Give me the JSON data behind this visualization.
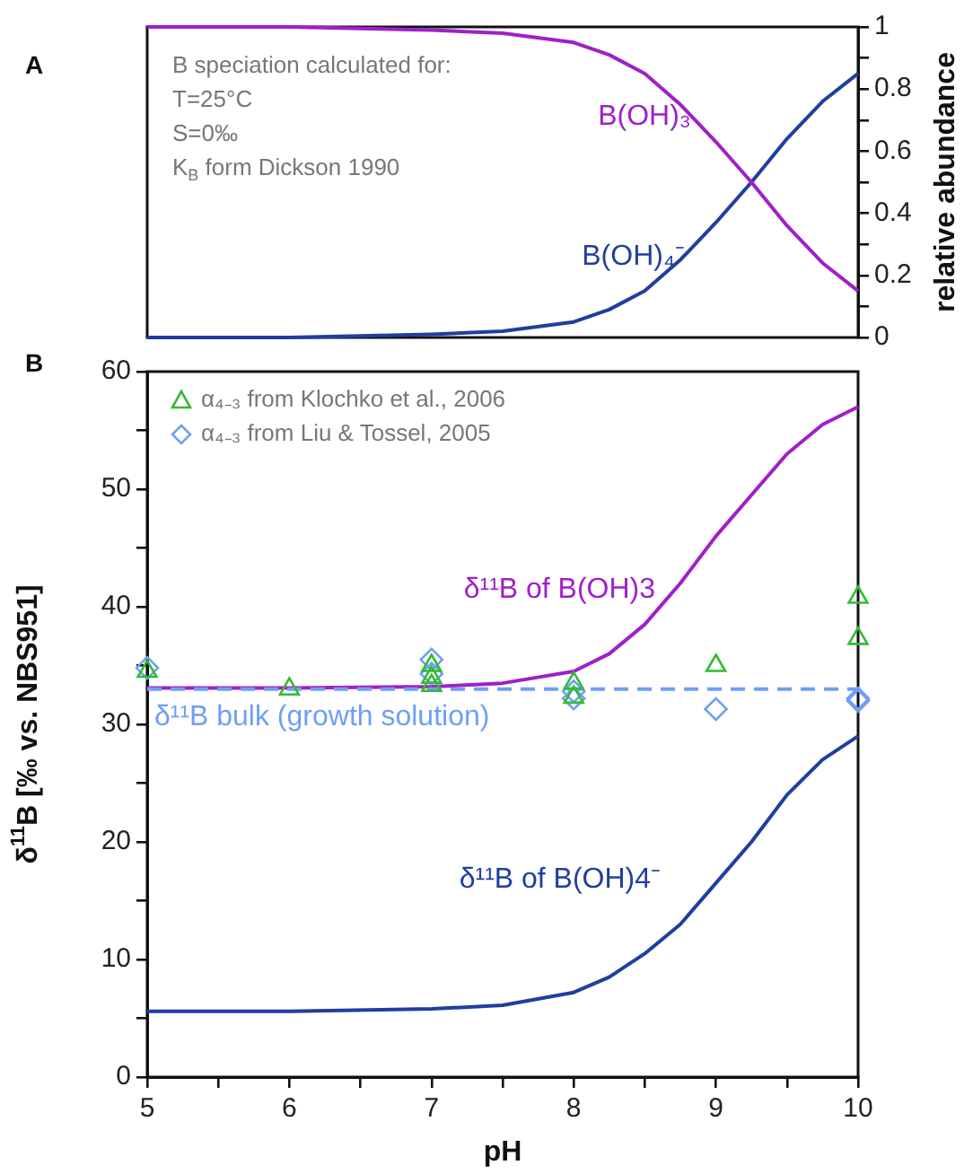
{
  "chart_data": [
    {
      "type": "line",
      "title": "A",
      "ylabel": "relative abundance",
      "xlim": [
        5,
        10
      ],
      "ylim": [
        0,
        1
      ],
      "yticks": [
        0,
        {
          "value": 0.1,
          "label": null
        },
        0.2,
        {
          "value": 0.3,
          "label": null
        },
        0.4,
        {
          "value": 0.5,
          "label": null
        },
        0.6,
        {
          "value": 0.7,
          "label": null
        },
        0.8,
        {
          "value": 0.9,
          "label": null
        },
        1
      ],
      "tick_labels": "y",
      "grid": false,
      "marker": "none",
      "annotations": [
        "B speciation calculated for:",
        "T=25°C",
        "S=0‰",
        "K$_{B}$ form Dickson 1990"
      ],
      "x": [
        5,
        6,
        7,
        7.5,
        8,
        8.25,
        8.5,
        8.75,
        9,
        9.25,
        9.5,
        9.75,
        10
      ],
      "series": [
        {
          "name": "B(OH)₃",
          "color": "#a020c8",
          "values": [
            1,
            1,
            0.99,
            0.98,
            0.95,
            0.91,
            0.85,
            0.75,
            0.63,
            0.5,
            0.36,
            0.24,
            0.15
          ]
        },
        {
          "name": "B(OH)₄⁻",
          "color": "#1f3f9f",
          "values": [
            0,
            0,
            0.01,
            0.02,
            0.05,
            0.09,
            0.15,
            0.25,
            0.37,
            0.5,
            0.64,
            0.76,
            0.85
          ]
        }
      ]
    },
    {
      "type": "line",
      "title": "B",
      "xlabel": "pH",
      "ylabel": "δ$^{11}$B [‰ vs. NBS951]",
      "xlim": [
        5,
        10
      ],
      "ylim": [
        0,
        60
      ],
      "xticks": [
        5,
        {
          "value": 5.5,
          "label": null
        },
        6,
        {
          "value": 6.5,
          "label": null
        },
        7,
        {
          "value": 7.5,
          "label": null
        },
        8,
        {
          "value": 8.5,
          "label": null
        },
        9,
        {
          "value": 9.5,
          "label": null
        },
        10
      ],
      "yticks": [
        0,
        {
          "value": 5,
          "label": null
        },
        10,
        {
          "value": 15,
          "label": null
        },
        20,
        {
          "value": 25,
          "label": null
        },
        30,
        {
          "value": 35,
          "label": null
        },
        40,
        {
          "value": 45,
          "label": null
        },
        50,
        {
          "value": 55,
          "label": null
        },
        60
      ],
      "grid": false,
      "legend": "top left",
      "x": [
        5,
        6,
        7,
        7.5,
        8,
        8.25,
        8.5,
        8.75,
        9,
        9.25,
        9.5,
        9.75,
        10
      ],
      "series": [
        {
          "name": "α₄₋₃ from Klochko et al., 2006",
          "type": "scatter",
          "marker": "triangle",
          "color": "#33bb33",
          "x": [
            5,
            6,
            7,
            7,
            7,
            8,
            8,
            9,
            10,
            10
          ],
          "values": [
            34.5,
            33,
            35,
            34,
            33.3,
            33.5,
            32.3,
            35,
            40.8,
            37.3
          ]
        },
        {
          "name": "α₄₋₃ from Liu & Tossel, 2005",
          "type": "scatter",
          "marker": "diamond",
          "color": "#6f9ff5",
          "x": [
            5,
            7,
            7,
            8,
            8,
            9,
            10,
            10
          ],
          "values": [
            34.8,
            35.5,
            34.3,
            32.8,
            32.2,
            31.3,
            32,
            32.2
          ]
        },
        {
          "name": "δ¹¹B bulk (growth solution)",
          "color": "#6f9ff5",
          "line_style": "dashed",
          "marker": "none",
          "x": [
            5,
            10
          ],
          "values": [
            33,
            33
          ]
        },
        {
          "name": "δ¹¹B of B(OH)3",
          "color": "#a020c8",
          "marker": "none",
          "values": [
            33.1,
            33.1,
            33.2,
            33.5,
            34.5,
            36,
            38.5,
            42,
            46,
            49.5,
            53,
            55.5,
            57
          ]
        },
        {
          "name": "δ¹¹B of B(OH)4⁻",
          "color": "#1f3f9f",
          "marker": "none",
          "values": [
            5.6,
            5.6,
            5.8,
            6.1,
            7.2,
            8.5,
            10.5,
            13,
            16.5,
            20,
            24,
            27,
            29
          ]
        }
      ]
    }
  ]
}
